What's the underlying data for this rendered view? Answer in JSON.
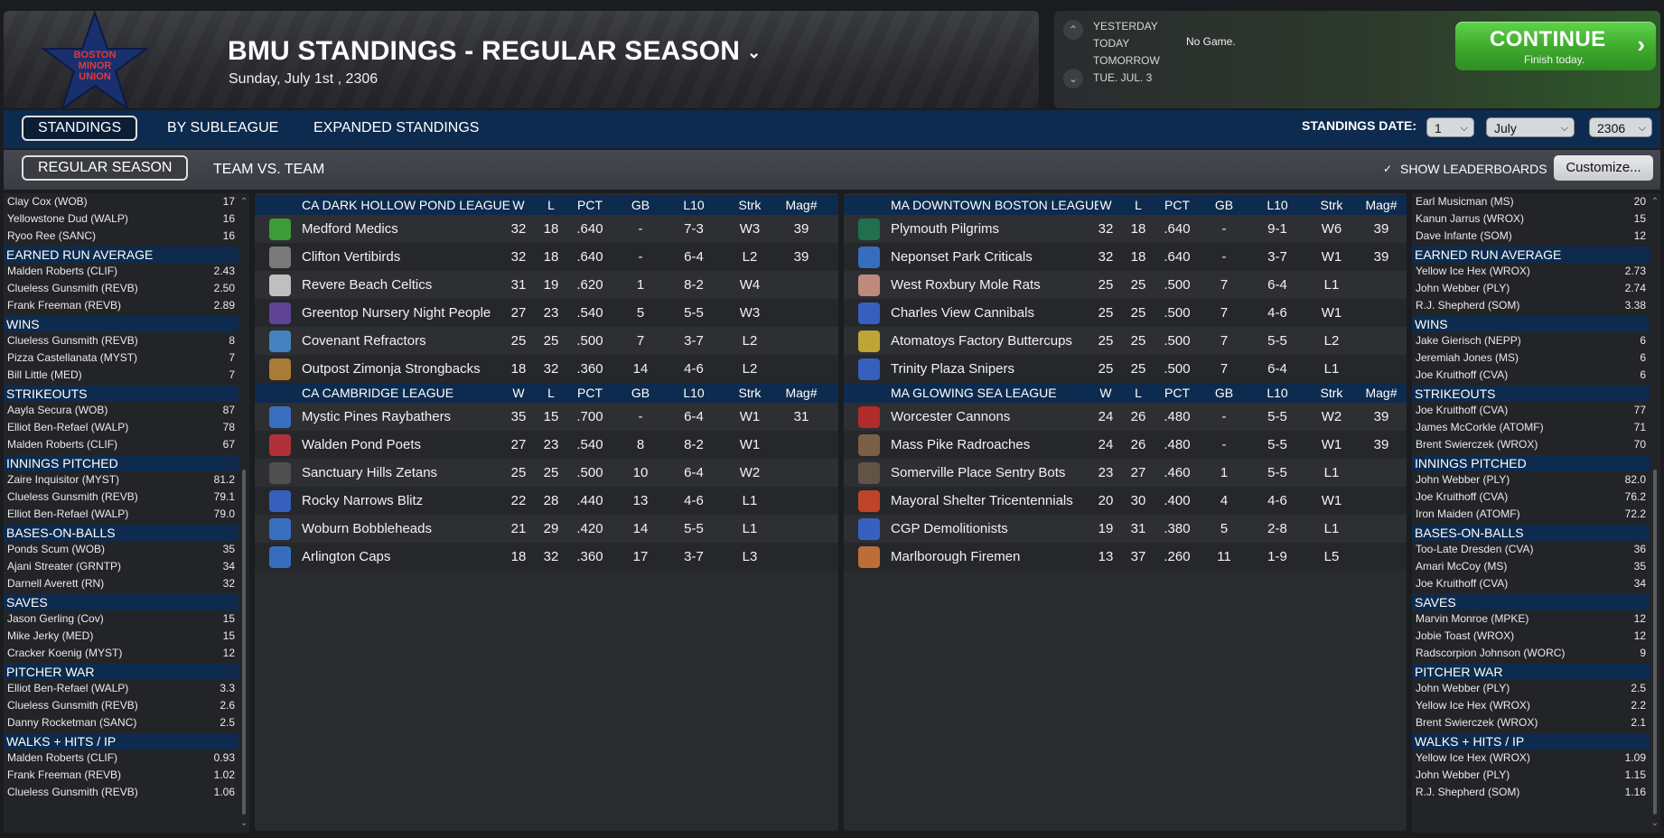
{
  "header": {
    "title": "BMU STANDINGS - REGULAR SEASON",
    "date": "Sunday, July 1st , 2306",
    "logo_text": [
      "BOSTON",
      "MINOR",
      "UNION"
    ]
  },
  "schedule": {
    "days": [
      "YESTERDAY",
      "TODAY",
      "TOMORROW",
      "TUE. JUL. 3"
    ],
    "today_status": "No Game.",
    "continue_label": "CONTINUE",
    "continue_sub": "Finish today."
  },
  "tabs": {
    "primary": [
      "STANDINGS",
      "BY SUBLEAGUE",
      "EXPANDED STANDINGS"
    ],
    "secondary": [
      "REGULAR SEASON",
      "TEAM VS. TEAM"
    ],
    "standings_date_label": "STANDINGS DATE:",
    "date_day": "1",
    "date_month": "July",
    "date_year": "2306",
    "show_leaderboards": "SHOW LEADERBOARDS",
    "customize": "Customize..."
  },
  "columns": [
    "W",
    "L",
    "PCT",
    "GB",
    "L10",
    "Strk",
    "Mag#"
  ],
  "leagues_left": [
    {
      "name": "CA DARK HOLLOW POND LEAGUE",
      "teams": [
        {
          "name": "Medford Medics",
          "w": "32",
          "l": "18",
          "pct": ".640",
          "gb": "-",
          "l10": "7-3",
          "strk": "W3",
          "mag": "39",
          "icon": "medic-cross-icon",
          "color": "#3fae3a"
        },
        {
          "name": "Clifton Vertibirds",
          "w": "32",
          "l": "18",
          "pct": ".640",
          "gb": "-",
          "l10": "6-4",
          "strk": "L2",
          "mag": "39",
          "icon": "vertibird-icon",
          "color": "#8a8a8a"
        },
        {
          "name": "Revere Beach Celtics",
          "w": "31",
          "l": "19",
          "pct": ".620",
          "gb": "1",
          "l10": "8-2",
          "strk": "W4",
          "mag": "",
          "icon": "clover-icon",
          "color": "#d8d8d8"
        },
        {
          "name": "Greentop Nursery Night People",
          "w": "27",
          "l": "23",
          "pct": ".540",
          "gb": "5",
          "l10": "5-5",
          "strk": "W3",
          "mag": "",
          "icon": "hooded-figure-icon",
          "color": "#6a4aa8"
        },
        {
          "name": "Covenant Refractors",
          "w": "25",
          "l": "25",
          "pct": ".500",
          "gb": "7",
          "l10": "3-7",
          "strk": "L2",
          "mag": "",
          "icon": "mascot-icon",
          "color": "#4a8fd8"
        },
        {
          "name": "Outpost Zimonja Strongbacks",
          "w": "18",
          "l": "32",
          "pct": ".360",
          "gb": "14",
          "l10": "4-6",
          "strk": "L2",
          "mag": "",
          "icon": "strongback-icon",
          "color": "#c28a3a"
        }
      ]
    },
    {
      "name": "CA CAMBRIDGE LEAGUE",
      "teams": [
        {
          "name": "Mystic Pines Raybathers",
          "w": "35",
          "l": "15",
          "pct": ".700",
          "gb": "-",
          "l10": "6-4",
          "strk": "W1",
          "mag": "31",
          "icon": "raybather-icon",
          "color": "#3a7ad8"
        },
        {
          "name": "Walden Pond Poets",
          "w": "27",
          "l": "23",
          "pct": ".540",
          "gb": "8",
          "l10": "8-2",
          "strk": "W1",
          "mag": "",
          "icon": "letter-w-icon",
          "color": "#c8343a"
        },
        {
          "name": "Sanctuary Hills Zetans",
          "w": "25",
          "l": "25",
          "pct": ".500",
          "gb": "10",
          "l10": "6-4",
          "strk": "W2",
          "mag": "",
          "icon": "zetan-icon",
          "color": "#555555"
        },
        {
          "name": "Rocky Narrows Blitz",
          "w": "22",
          "l": "28",
          "pct": ".440",
          "gb": "13",
          "l10": "4-6",
          "strk": "L1",
          "mag": "",
          "icon": "blitz-runner-icon",
          "color": "#3a6ad8"
        },
        {
          "name": "Woburn Bobbleheads",
          "w": "21",
          "l": "29",
          "pct": ".420",
          "gb": "14",
          "l10": "5-5",
          "strk": "L1",
          "mag": "",
          "icon": "bobblehead-icon",
          "color": "#3a7ad8"
        },
        {
          "name": "Arlington Caps",
          "w": "18",
          "l": "32",
          "pct": ".360",
          "gb": "17",
          "l10": "3-7",
          "strk": "L3",
          "mag": "",
          "icon": "cap-mascot-icon",
          "color": "#3a7ad8"
        }
      ]
    }
  ],
  "leagues_right": [
    {
      "name": "MA DOWNTOWN BOSTON LEAGUE",
      "teams": [
        {
          "name": "Plymouth Pilgrims",
          "w": "32",
          "l": "18",
          "pct": ".640",
          "gb": "-",
          "l10": "9-1",
          "strk": "W6",
          "mag": "39",
          "icon": "pilgrim-badge-icon",
          "color": "#1f7a52"
        },
        {
          "name": "Neponset Park Criticals",
          "w": "32",
          "l": "18",
          "pct": ".640",
          "gb": "-",
          "l10": "3-7",
          "strk": "W1",
          "mag": "39",
          "icon": "mascot-icon",
          "color": "#3a7ad8"
        },
        {
          "name": "West Roxbury Mole Rats",
          "w": "25",
          "l": "25",
          "pct": ".500",
          "gb": "7",
          "l10": "6-4",
          "strk": "L1",
          "mag": "",
          "icon": "mole-rat-icon",
          "color": "#d89a8a"
        },
        {
          "name": "Charles View Cannibals",
          "w": "25",
          "l": "25",
          "pct": ".500",
          "gb": "7",
          "l10": "4-6",
          "strk": "W1",
          "mag": "",
          "icon": "cannibal-icon",
          "color": "#3a6ad8"
        },
        {
          "name": "Atomatoys Factory Buttercups",
          "w": "25",
          "l": "25",
          "pct": ".500",
          "gb": "7",
          "l10": "5-5",
          "strk": "L2",
          "mag": "",
          "icon": "robot-toy-icon",
          "color": "#d8b83a"
        },
        {
          "name": "Trinity Plaza Snipers",
          "w": "25",
          "l": "25",
          "pct": ".500",
          "gb": "7",
          "l10": "6-4",
          "strk": "L1",
          "mag": "",
          "icon": "sniper-icon",
          "color": "#3a6ad8"
        }
      ]
    },
    {
      "name": "MA GLOWING SEA LEAGUE",
      "teams": [
        {
          "name": "Worcester Cannons",
          "w": "24",
          "l": "26",
          "pct": ".480",
          "gb": "-",
          "l10": "5-5",
          "strk": "W2",
          "mag": "39",
          "icon": "cannon-badge-icon",
          "color": "#c82a2a"
        },
        {
          "name": "Mass Pike Radroaches",
          "w": "24",
          "l": "26",
          "pct": ".480",
          "gb": "-",
          "l10": "5-5",
          "strk": "W1",
          "mag": "39",
          "icon": "radroach-icon",
          "color": "#8a6a4a"
        },
        {
          "name": "Somerville Place Sentry Bots",
          "w": "23",
          "l": "27",
          "pct": ".460",
          "gb": "1",
          "l10": "5-5",
          "strk": "L1",
          "mag": "",
          "icon": "sentry-bot-icon",
          "color": "#6a5a4a"
        },
        {
          "name": "Mayoral Shelter Tricentennials",
          "w": "20",
          "l": "30",
          "pct": ".400",
          "gb": "4",
          "l10": "4-6",
          "strk": "W1",
          "mag": "",
          "icon": "shelter-icon",
          "color": "#d84a2a"
        },
        {
          "name": "CGP Demolitionists",
          "w": "19",
          "l": "31",
          "pct": ".380",
          "gb": "5",
          "l10": "2-8",
          "strk": "L1",
          "mag": "",
          "icon": "demolitionist-icon",
          "color": "#3a6ad8"
        },
        {
          "name": "Marlborough Firemen",
          "w": "13",
          "l": "37",
          "pct": ".260",
          "gb": "11",
          "l10": "1-9",
          "strk": "L5",
          "mag": "",
          "icon": "fireman-icon",
          "color": "#d87a3a"
        }
      ]
    }
  ],
  "leaders_left": {
    "top_rows": [
      {
        "name": "Clay Cox (WOB)",
        "value": "17"
      },
      {
        "name": "Yellowstone Dud (WALP)",
        "value": "16"
      },
      {
        "name": "Ryoo Ree (SANC)",
        "value": "16"
      }
    ],
    "categories": [
      {
        "title": "EARNED RUN AVERAGE",
        "rows": [
          {
            "name": "Malden Roberts (CLIF)",
            "value": "2.43"
          },
          {
            "name": "Clueless Gunsmith (REVB)",
            "value": "2.50"
          },
          {
            "name": "Frank Freeman (REVB)",
            "value": "2.89"
          }
        ]
      },
      {
        "title": "WINS",
        "rows": [
          {
            "name": "Clueless Gunsmith (REVB)",
            "value": "8"
          },
          {
            "name": "Pizza Castellanata (MYST)",
            "value": "7"
          },
          {
            "name": "Bill Little (MED)",
            "value": "7"
          }
        ]
      },
      {
        "title": "STRIKEOUTS",
        "rows": [
          {
            "name": "Aayla Secura (WOB)",
            "value": "87"
          },
          {
            "name": "Elliot Ben-Refael (WALP)",
            "value": "78"
          },
          {
            "name": "Malden Roberts (CLIF)",
            "value": "67"
          }
        ]
      },
      {
        "title": "INNINGS PITCHED",
        "rows": [
          {
            "name": "Zaire Inquisitor (MYST)",
            "value": "81.2"
          },
          {
            "name": "Clueless Gunsmith (REVB)",
            "value": "79.1"
          },
          {
            "name": "Elliot Ben-Refael (WALP)",
            "value": "79.0"
          }
        ]
      },
      {
        "title": "BASES-ON-BALLS",
        "rows": [
          {
            "name": "Ponds Scum (WOB)",
            "value": "35"
          },
          {
            "name": "Ajani Streater (GRNTP)",
            "value": "34"
          },
          {
            "name": "Darnell Averett (RN)",
            "value": "32"
          }
        ]
      },
      {
        "title": "SAVES",
        "rows": [
          {
            "name": "Jason Gerling (Cov)",
            "value": "15"
          },
          {
            "name": "Mike Jerky (MED)",
            "value": "15"
          },
          {
            "name": "Cracker Koenig (MYST)",
            "value": "12"
          }
        ]
      },
      {
        "title": "PITCHER WAR",
        "rows": [
          {
            "name": "Elliot Ben-Refael (WALP)",
            "value": "3.3"
          },
          {
            "name": "Clueless Gunsmith (REVB)",
            "value": "2.6"
          },
          {
            "name": "Danny Rocketman (SANC)",
            "value": "2.5"
          }
        ]
      },
      {
        "title": "WALKS + HITS / IP",
        "rows": [
          {
            "name": "Malden Roberts (CLIF)",
            "value": "0.93"
          },
          {
            "name": "Frank Freeman (REVB)",
            "value": "1.02"
          },
          {
            "name": "Clueless Gunsmith (REVB)",
            "value": "1.06"
          }
        ]
      }
    ]
  },
  "leaders_right": {
    "top_rows": [
      {
        "name": "Earl Musicman (MS)",
        "value": "20"
      },
      {
        "name": "Kanun Jarrus (WROX)",
        "value": "15"
      },
      {
        "name": "Dave Infante (SOM)",
        "value": "12"
      }
    ],
    "categories": [
      {
        "title": "EARNED RUN AVERAGE",
        "rows": [
          {
            "name": "Yellow Ice Hex (WROX)",
            "value": "2.73"
          },
          {
            "name": "John Webber (PLY)",
            "value": "2.74"
          },
          {
            "name": "R.J. Shepherd (SOM)",
            "value": "3.38"
          }
        ]
      },
      {
        "title": "WINS",
        "rows": [
          {
            "name": "Jake Gierisch (NEPP)",
            "value": "6"
          },
          {
            "name": "Jeremiah Jones (MS)",
            "value": "6"
          },
          {
            "name": "Joe Kruithoff (CVA)",
            "value": "6"
          }
        ]
      },
      {
        "title": "STRIKEOUTS",
        "rows": [
          {
            "name": "Joe Kruithoff (CVA)",
            "value": "77"
          },
          {
            "name": "James McCorkle (ATOMF)",
            "value": "71"
          },
          {
            "name": "Brent Swierczek (WROX)",
            "value": "70"
          }
        ]
      },
      {
        "title": "INNINGS PITCHED",
        "rows": [
          {
            "name": "John Webber (PLY)",
            "value": "82.0"
          },
          {
            "name": "Joe Kruithoff (CVA)",
            "value": "76.2"
          },
          {
            "name": "Iron Maiden (ATOMF)",
            "value": "72.2"
          }
        ]
      },
      {
        "title": "BASES-ON-BALLS",
        "rows": [
          {
            "name": "Too-Late Dresden (CVA)",
            "value": "36"
          },
          {
            "name": "Amari McCoy (MS)",
            "value": "35"
          },
          {
            "name": "Joe Kruithoff (CVA)",
            "value": "34"
          }
        ]
      },
      {
        "title": "SAVES",
        "rows": [
          {
            "name": "Marvin Monroe (MPKE)",
            "value": "12"
          },
          {
            "name": "Jobie Toast (WROX)",
            "value": "12"
          },
          {
            "name": "Radscorpion Johnson (WORC)",
            "value": "9"
          }
        ]
      },
      {
        "title": "PITCHER WAR",
        "rows": [
          {
            "name": "John Webber (PLY)",
            "value": "2.5"
          },
          {
            "name": "Yellow Ice Hex (WROX)",
            "value": "2.2"
          },
          {
            "name": "Brent Swierczek (WROX)",
            "value": "2.1"
          }
        ]
      },
      {
        "title": "WALKS + HITS / IP",
        "rows": [
          {
            "name": "Yellow Ice Hex (WROX)",
            "value": "1.09"
          },
          {
            "name": "John Webber (PLY)",
            "value": "1.15"
          },
          {
            "name": "R.J. Shepherd (SOM)",
            "value": "1.16"
          }
        ]
      }
    ]
  }
}
